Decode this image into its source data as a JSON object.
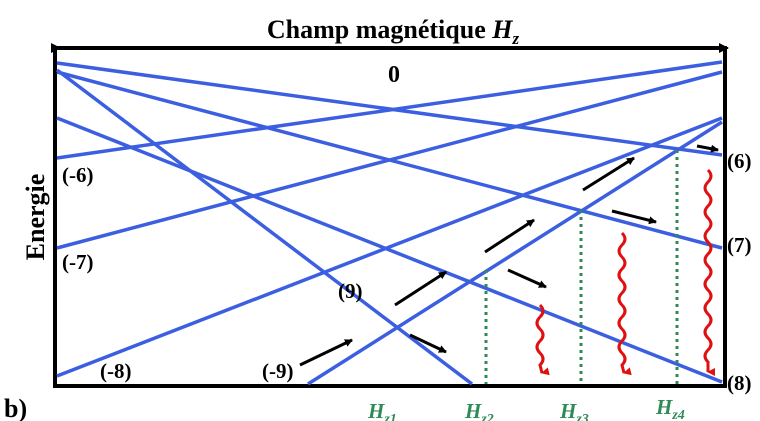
{
  "title": {
    "text": "Champ magnétique ",
    "var": "H",
    "sub": "z"
  },
  "zero_label": "0",
  "y_axis_label": "Energie",
  "panel_label": "b)",
  "levels_left": [
    "(-6)",
    "(-7)",
    "(-8)",
    "(-9)"
  ],
  "levels_right": [
    "(6)",
    "(7)",
    "(8)"
  ],
  "level_middle": "(9)",
  "field_marks": [
    {
      "var": "H",
      "sub": "z1"
    },
    {
      "var": "H",
      "sub": "z2"
    },
    {
      "var": "H",
      "sub": "z3"
    },
    {
      "var": "H",
      "sub": "z4"
    }
  ],
  "colors": {
    "lines": "#3b5fe0",
    "crossings": "#2e8b57",
    "decay": "#e01010",
    "axes": "#000000"
  }
}
